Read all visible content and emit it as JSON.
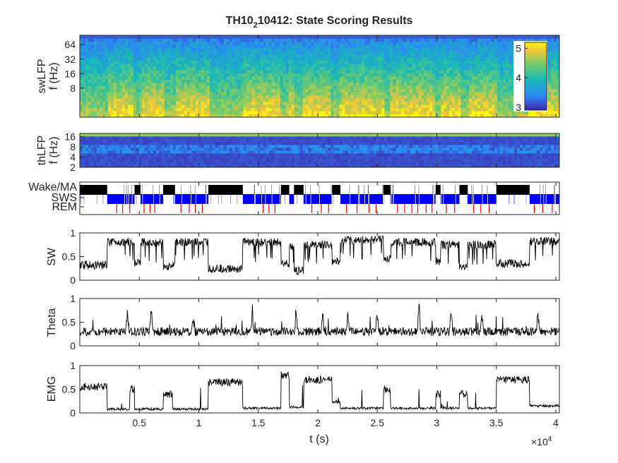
{
  "chart_data": {
    "figure_title_prefix": "TH10",
    "figure_title_sub": "2",
    "figure_title_suffix": "10412: State Scoring Results",
    "x_axis": {
      "label": "t (s)",
      "tick_values": [
        5000,
        10000,
        15000,
        20000,
        25000,
        30000,
        35000,
        40000
      ],
      "tick_labels": [
        "0.5",
        "1",
        "1.5",
        "2",
        "2.5",
        "3",
        "3.5",
        "4"
      ],
      "exponent_base": "×10",
      "exponent": "4",
      "xlim": [
        0,
        40300
      ]
    },
    "panels": [
      {
        "id": "swlfp",
        "type": "heatmap",
        "ylabel_line1": "swLFP",
        "ylabel_line2": "f (Hz)",
        "yscale": "log",
        "ylim": [
          2,
          100
        ],
        "ytick_values": [
          8,
          16,
          32,
          64
        ],
        "ytick_labels": [
          "8",
          "16",
          "32",
          "64"
        ],
        "colorbar": {
          "colormap": "parula",
          "clim": [
            2.9,
            5.2
          ],
          "tick_values": [
            3,
            4,
            5
          ],
          "tick_labels": [
            "3",
            "4",
            "5"
          ],
          "placement": "inside-right"
        }
      },
      {
        "id": "thlfp",
        "type": "heatmap",
        "ylabel_line1": "thLFP",
        "ylabel_line2": "f (Hz)",
        "yscale": "log",
        "ylim": [
          2,
          20
        ],
        "ytick_values": [
          2,
          4,
          8,
          16
        ],
        "ytick_labels": [
          "2",
          "4",
          "8",
          "16"
        ]
      },
      {
        "id": "states",
        "type": "hypnogram",
        "categories": [
          "Wake/MA",
          "SWS",
          "REM"
        ],
        "category_colors": [
          "#000000",
          "#0000ff",
          "#ff0000"
        ],
        "bouts": [
          {
            "state": "Wake/MA",
            "start": 0,
            "end": 2300
          },
          {
            "state": "SWS",
            "start": 2300,
            "end": 4600
          },
          {
            "state": "Wake/MA",
            "start": 4600,
            "end": 5100
          },
          {
            "state": "SWS",
            "start": 5100,
            "end": 7000
          },
          {
            "state": "Wake/MA",
            "start": 7000,
            "end": 8000
          },
          {
            "state": "SWS",
            "start": 8000,
            "end": 10800
          },
          {
            "state": "Wake/MA",
            "start": 10800,
            "end": 13700
          },
          {
            "state": "SWS",
            "start": 13700,
            "end": 16900
          },
          {
            "state": "Wake/MA",
            "start": 16900,
            "end": 17600
          },
          {
            "state": "SWS",
            "start": 17600,
            "end": 18000
          },
          {
            "state": "Wake/MA",
            "start": 18000,
            "end": 18800
          },
          {
            "state": "SWS",
            "start": 18800,
            "end": 21200
          },
          {
            "state": "Wake/MA",
            "start": 21200,
            "end": 21900
          },
          {
            "state": "SWS",
            "start": 21900,
            "end": 25500
          },
          {
            "state": "Wake/MA",
            "start": 25500,
            "end": 26100
          },
          {
            "state": "SWS",
            "start": 26100,
            "end": 29900
          },
          {
            "state": "Wake/MA",
            "start": 29900,
            "end": 30300
          },
          {
            "state": "SWS",
            "start": 30300,
            "end": 31900
          },
          {
            "state": "Wake/MA",
            "start": 31900,
            "end": 32600
          },
          {
            "state": "SWS",
            "start": 32600,
            "end": 35000
          },
          {
            "state": "Wake/MA",
            "start": 35000,
            "end": 37800
          },
          {
            "state": "SWS",
            "start": 37800,
            "end": 40300
          }
        ],
        "rem_events": [
          3100,
          3600,
          4200,
          5400,
          5900,
          6300,
          8500,
          9200,
          9700,
          10300,
          15400,
          15900,
          16400,
          19500,
          20300,
          20900,
          22400,
          23300,
          24300,
          24900,
          26700,
          27300,
          27900,
          28400,
          29100,
          29600,
          30800,
          31500,
          33100,
          33700,
          34400,
          38200,
          38900,
          39700
        ]
      },
      {
        "id": "sw",
        "type": "line",
        "ylabel": "SW",
        "ylim": [
          0,
          1
        ],
        "ytick_values": [
          0,
          0.5,
          1
        ],
        "ytick_labels": [
          "0",
          "0.5",
          "1"
        ],
        "level_segments": [
          [
            0,
            0.32
          ],
          [
            2300,
            0.8
          ],
          [
            4600,
            0.35
          ],
          [
            5100,
            0.8
          ],
          [
            7000,
            0.3
          ],
          [
            8000,
            0.8
          ],
          [
            10800,
            0.25
          ],
          [
            13700,
            0.8
          ],
          [
            16900,
            0.35
          ],
          [
            17600,
            0.7
          ],
          [
            18000,
            0.2
          ],
          [
            18800,
            0.75
          ],
          [
            21200,
            0.4
          ],
          [
            21900,
            0.85
          ],
          [
            25500,
            0.45
          ],
          [
            26100,
            0.8
          ],
          [
            29900,
            0.4
          ],
          [
            30300,
            0.75
          ],
          [
            31900,
            0.3
          ],
          [
            32600,
            0.75
          ],
          [
            35000,
            0.35
          ],
          [
            37800,
            0.82
          ]
        ]
      },
      {
        "id": "theta",
        "type": "line",
        "ylabel": "Theta",
        "ylim": [
          0,
          1
        ],
        "ytick_values": [
          0,
          0.5,
          1
        ],
        "ytick_labels": [
          "0",
          "0.5",
          "1"
        ],
        "baseline": 0.3,
        "peaks": [
          [
            4000,
            0.85
          ],
          [
            6000,
            0.9
          ],
          [
            9500,
            0.75
          ],
          [
            14500,
            0.78
          ],
          [
            18200,
            0.82
          ],
          [
            20400,
            0.8
          ],
          [
            22500,
            0.88
          ],
          [
            25000,
            0.93
          ],
          [
            28500,
            1.0
          ],
          [
            31200,
            0.85
          ],
          [
            33800,
            0.82
          ],
          [
            36500,
            0.55
          ],
          [
            38500,
            0.88
          ]
        ]
      },
      {
        "id": "emg",
        "type": "line",
        "ylabel": "EMG",
        "ylim": [
          0,
          1
        ],
        "ytick_values": [
          0,
          0.5,
          1
        ],
        "ytick_labels": [
          "0",
          "0.5",
          "1"
        ],
        "level_segments": [
          [
            0,
            0.55
          ],
          [
            2300,
            0.08
          ],
          [
            4200,
            0.5
          ],
          [
            4600,
            0.08
          ],
          [
            7000,
            0.4
          ],
          [
            7800,
            0.08
          ],
          [
            10800,
            0.65
          ],
          [
            13700,
            0.1
          ],
          [
            16900,
            0.8
          ],
          [
            17600,
            0.12
          ],
          [
            18800,
            0.7
          ],
          [
            21200,
            0.22
          ],
          [
            21900,
            0.1
          ],
          [
            25500,
            0.5
          ],
          [
            26100,
            0.1
          ],
          [
            29900,
            0.4
          ],
          [
            30300,
            0.1
          ],
          [
            31900,
            0.4
          ],
          [
            32600,
            0.1
          ],
          [
            35000,
            0.7
          ],
          [
            37800,
            0.15
          ]
        ]
      }
    ]
  }
}
